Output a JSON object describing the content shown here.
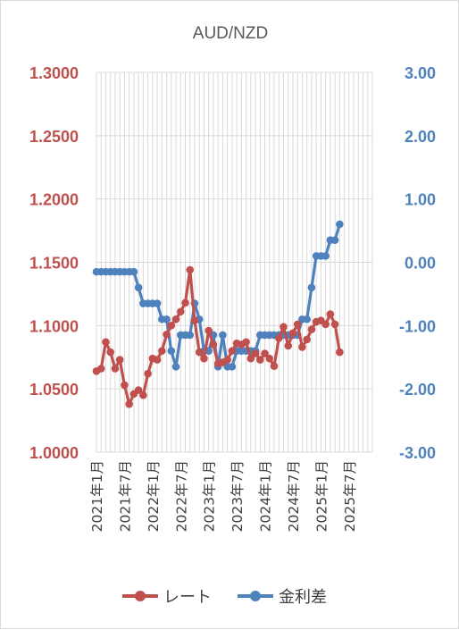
{
  "chart_data": {
    "type": "line",
    "title": "AUD/NZD",
    "xlabel": "",
    "y_left": {
      "label": "",
      "range": [
        1.0,
        1.3
      ],
      "ticks": [
        "1.3000",
        "1.2500",
        "1.2000",
        "1.1500",
        "1.1000",
        "1.0500",
        "1.0000"
      ],
      "color": "#c0504d"
    },
    "y_right": {
      "label": "",
      "range": [
        -3.0,
        3.0
      ],
      "ticks": [
        "3.00",
        "2.00",
        "1.00",
        "0.00",
        "-1.00",
        "-2.00",
        "-3.00"
      ],
      "color": "#4f81bd"
    },
    "x_range_months": [
      "2021-01",
      "2025-12"
    ],
    "x_ticks": [
      "2021年1月",
      "2021年7月",
      "2022年1月",
      "2022年7月",
      "2023年1月",
      "2023年7月",
      "2024年1月",
      "2024年7月",
      "2025年1月",
      "2025年7月"
    ],
    "grid": true,
    "legend_position": "bottom",
    "series": [
      {
        "name": "レート",
        "axis": "left",
        "color": "#c0504d",
        "points": [
          [
            "2021-01",
            1.064
          ],
          [
            "2021-02",
            1.066
          ],
          [
            "2021-03",
            1.087
          ],
          [
            "2021-04",
            1.079
          ],
          [
            "2021-05",
            1.066
          ],
          [
            "2021-06",
            1.073
          ],
          [
            "2021-07",
            1.053
          ],
          [
            "2021-08",
            1.038
          ],
          [
            "2021-09",
            1.046
          ],
          [
            "2021-10",
            1.049
          ],
          [
            "2021-11",
            1.045
          ],
          [
            "2021-12",
            1.062
          ],
          [
            "2022-01",
            1.074
          ],
          [
            "2022-02",
            1.073
          ],
          [
            "2022-03",
            1.08
          ],
          [
            "2022-04",
            1.093
          ],
          [
            "2022-05",
            1.1
          ],
          [
            "2022-06",
            1.105
          ],
          [
            "2022-07",
            1.111
          ],
          [
            "2022-08",
            1.118
          ],
          [
            "2022-09",
            1.144
          ],
          [
            "2022-10",
            1.104
          ],
          [
            "2022-11",
            1.079
          ],
          [
            "2022-12",
            1.074
          ],
          [
            "2023-01",
            1.096
          ],
          [
            "2023-02",
            1.085
          ],
          [
            "2023-03",
            1.07
          ],
          [
            "2023-04",
            1.071
          ],
          [
            "2023-05",
            1.073
          ],
          [
            "2023-06",
            1.08
          ],
          [
            "2023-07",
            1.086
          ],
          [
            "2023-08",
            1.085
          ],
          [
            "2023-09",
            1.087
          ],
          [
            "2023-10",
            1.074
          ],
          [
            "2023-11",
            1.078
          ],
          [
            "2023-12",
            1.073
          ],
          [
            "2024-01",
            1.078
          ],
          [
            "2024-02",
            1.074
          ],
          [
            "2024-03",
            1.068
          ],
          [
            "2024-04",
            1.09
          ],
          [
            "2024-05",
            1.099
          ],
          [
            "2024-06",
            1.084
          ],
          [
            "2024-07",
            1.094
          ],
          [
            "2024-08",
            1.101
          ],
          [
            "2024-09",
            1.083
          ],
          [
            "2024-10",
            1.089
          ],
          [
            "2024-11",
            1.097
          ],
          [
            "2024-12",
            1.103
          ],
          [
            "2025-01",
            1.104
          ],
          [
            "2025-02",
            1.101
          ],
          [
            "2025-03",
            1.109
          ],
          [
            "2025-04",
            1.101
          ],
          [
            "2025-05",
            1.079
          ]
        ]
      },
      {
        "name": "金利差",
        "axis": "right",
        "color": "#4f81bd",
        "points": [
          [
            "2021-01",
            -0.15
          ],
          [
            "2021-02",
            -0.15
          ],
          [
            "2021-03",
            -0.15
          ],
          [
            "2021-04",
            -0.15
          ],
          [
            "2021-05",
            -0.15
          ],
          [
            "2021-06",
            -0.15
          ],
          [
            "2021-07",
            -0.15
          ],
          [
            "2021-08",
            -0.15
          ],
          [
            "2021-09",
            -0.15
          ],
          [
            "2021-10",
            -0.4
          ],
          [
            "2021-11",
            -0.65
          ],
          [
            "2021-12",
            -0.65
          ],
          [
            "2022-01",
            -0.65
          ],
          [
            "2022-02",
            -0.65
          ],
          [
            "2022-03",
            -0.9
          ],
          [
            "2022-04",
            -0.9
          ],
          [
            "2022-05",
            -1.4
          ],
          [
            "2022-06",
            -1.65
          ],
          [
            "2022-07",
            -1.15
          ],
          [
            "2022-08",
            -1.15
          ],
          [
            "2022-09",
            -1.15
          ],
          [
            "2022-10",
            -0.65
          ],
          [
            "2022-11",
            -0.9
          ],
          [
            "2022-12",
            -1.4
          ],
          [
            "2023-01",
            -1.4
          ],
          [
            "2023-02",
            -1.15
          ],
          [
            "2023-03",
            -1.65
          ],
          [
            "2023-04",
            -1.15
          ],
          [
            "2023-05",
            -1.65
          ],
          [
            "2023-06",
            -1.65
          ],
          [
            "2023-07",
            -1.4
          ],
          [
            "2023-08",
            -1.4
          ],
          [
            "2023-09",
            -1.4
          ],
          [
            "2023-10",
            -1.4
          ],
          [
            "2023-11",
            -1.4
          ],
          [
            "2023-12",
            -1.15
          ],
          [
            "2024-01",
            -1.15
          ],
          [
            "2024-02",
            -1.15
          ],
          [
            "2024-03",
            -1.15
          ],
          [
            "2024-04",
            -1.15
          ],
          [
            "2024-05",
            -1.15
          ],
          [
            "2024-06",
            -1.15
          ],
          [
            "2024-07",
            -1.15
          ],
          [
            "2024-08",
            -1.15
          ],
          [
            "2024-09",
            -0.9
          ],
          [
            "2024-10",
            -0.9
          ],
          [
            "2024-11",
            -0.4
          ],
          [
            "2024-12",
            0.1
          ],
          [
            "2025-01",
            0.1
          ],
          [
            "2025-02",
            0.1
          ],
          [
            "2025-03",
            0.35
          ],
          [
            "2025-04",
            0.35
          ],
          [
            "2025-05",
            0.6
          ]
        ]
      }
    ]
  }
}
